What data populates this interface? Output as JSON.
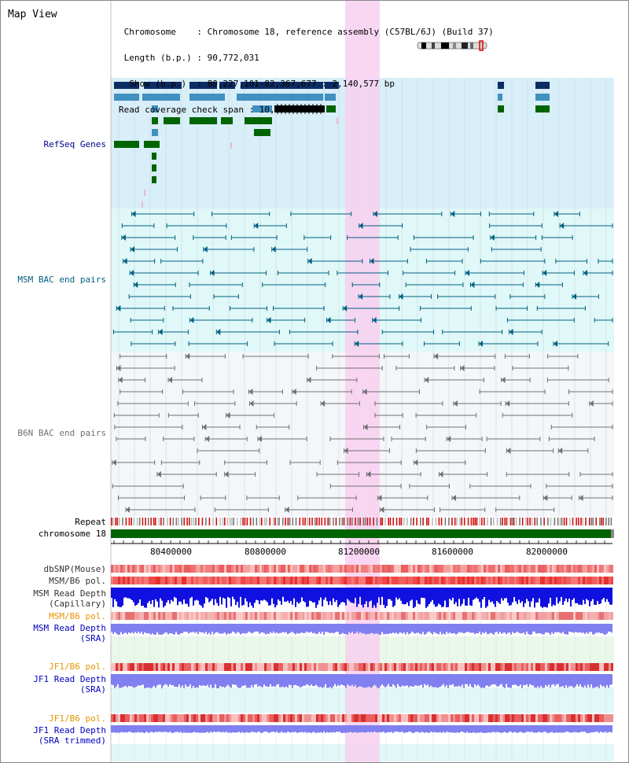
{
  "header": {
    "title": "Map View",
    "info_lines": [
      " Chromosome    : Chromosome 18, reference assembly (C57BL/6J) (Build 37)",
      " Length (b.p.) : 90,772,031",
      "  Show (b.p.)  : 80,227,101-82,367,677 : 2,140,577 bp",
      "Read coverage check span : 10,000"
    ]
  },
  "tracks": {
    "refseq": {
      "label": "RefSeq Genes",
      "color": "#00008b"
    },
    "msm_bac": {
      "label": "MSM BAC end pairs",
      "color": "#006080"
    },
    "b6n_bac": {
      "label": "B6N BAC end pairs",
      "color": "#707070"
    },
    "repeat": {
      "label": "Repeat"
    },
    "chromosome": {
      "label": "chromosome 18"
    },
    "dbsnp": {
      "label": "dbSNP(Mouse)"
    },
    "msm_b6_pol_1": {
      "label": "MSM/B6 pol."
    },
    "msm_read_depth_cap": {
      "label": "MSM Read Depth\n(Capillary)"
    },
    "msm_b6_pol_2": {
      "label": "MSM/B6 pol.",
      "color": "#e69500"
    },
    "msm_read_depth_sra": {
      "label": "MSM Read Depth\n(SRA)",
      "color": "#0000c0"
    },
    "jf1_b6_pol_1": {
      "label": "JF1/B6 pol.",
      "color": "#e69500"
    },
    "jf1_read_depth_sra": {
      "label": "JF1 Read Depth\n(SRA)",
      "color": "#0000c0"
    },
    "jf1_b6_pol_2": {
      "label": "JF1/B6 pol.",
      "color": "#e69500"
    },
    "jf1_read_depth_trim": {
      "label": "JF1 Read Depth\n(SRA trimmed)",
      "color": "#0000c0"
    }
  },
  "axis": {
    "ticks": [
      "80400000",
      "80800000",
      "81200000",
      "81600000",
      "82000000"
    ]
  },
  "colors": {
    "highlight": "#f8d0f0",
    "refseq_bg": "#d8eef8",
    "msm_bg": "#e0f8f8",
    "b6n_bg": "#f4f6fa",
    "gene_dark": "#0c2c64",
    "gene_mid": "#4090c0",
    "gene_green": "#006400",
    "msm_line": "#006080",
    "b6n_line": "#707070"
  }
}
